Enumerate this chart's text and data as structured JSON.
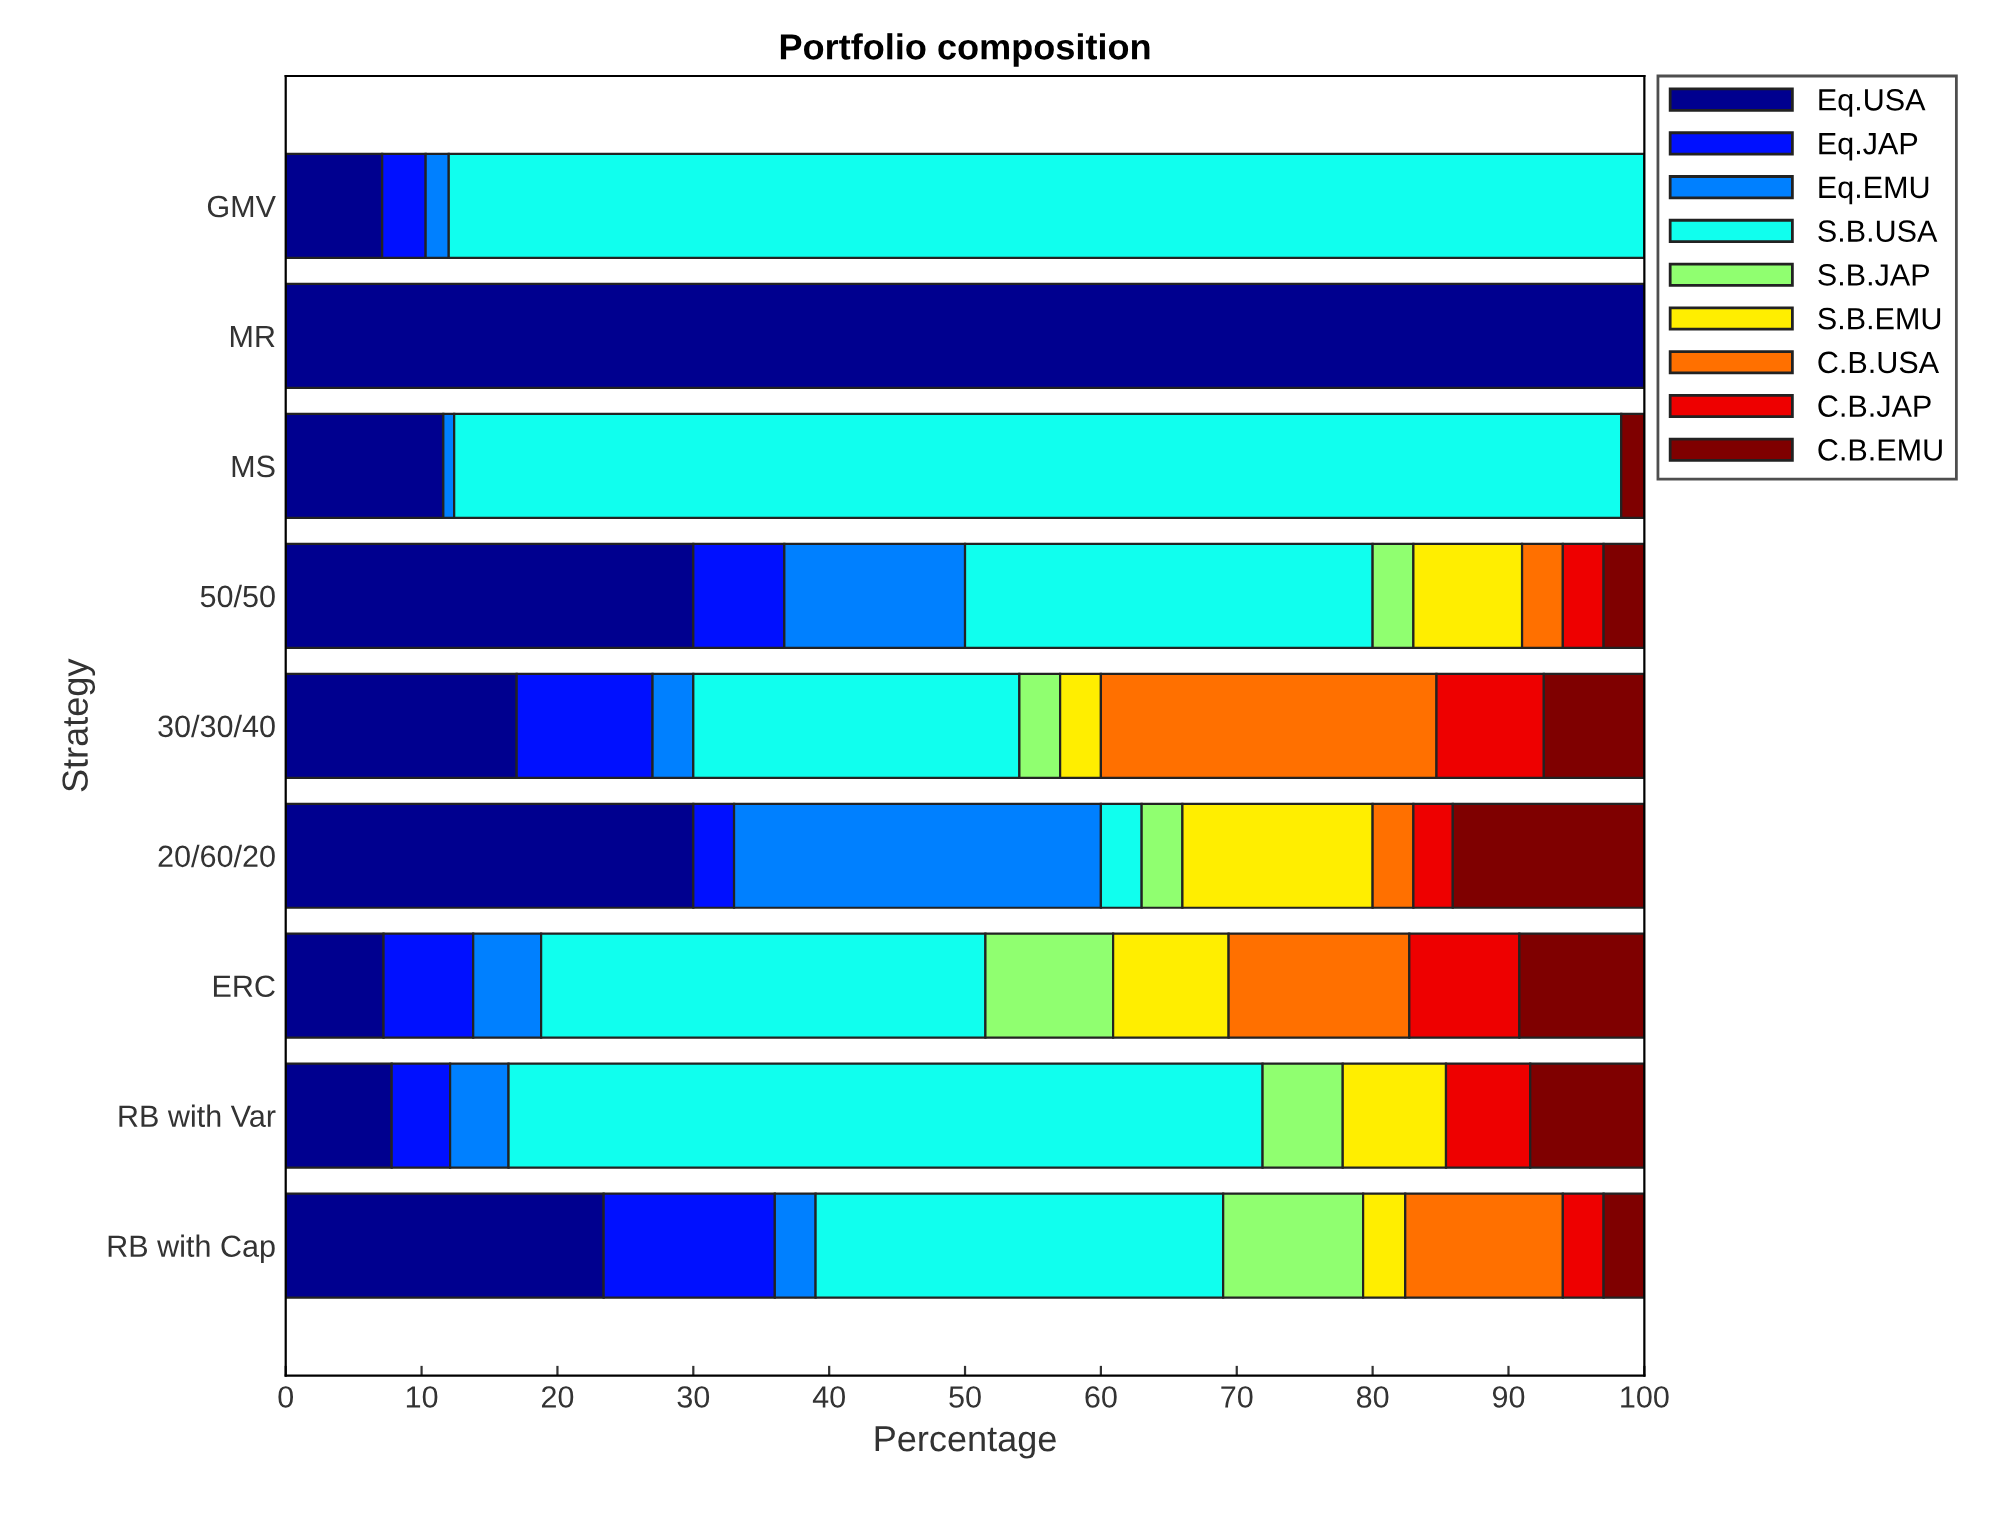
{
  "chart_data": {
    "type": "bar",
    "orientation": "horizontal",
    "stacked": true,
    "title": "Portfolio composition",
    "xlabel": "Percentage",
    "ylabel": "Strategy",
    "categories": [
      "GMV",
      "MR",
      "MS",
      "50/50",
      "30/30/40",
      "20/60/20",
      "ERC",
      "RB with Var",
      "RB with Cap"
    ],
    "xlim": [
      0,
      100
    ],
    "xticks": [
      0,
      10,
      20,
      30,
      40,
      50,
      60,
      70,
      80,
      90,
      100
    ],
    "grid": false,
    "legend": "top right",
    "series": [
      {
        "name": "Eq.USA",
        "color": "#00008f",
        "values": [
          7.1,
          100,
          11.6,
          30,
          17,
          30,
          7.2,
          7.8,
          23.4
        ]
      },
      {
        "name": "Eq.JAP",
        "color": "#0010ff",
        "values": [
          3.2,
          0,
          0,
          6.7,
          10,
          3,
          6.6,
          4.3,
          12.6
        ]
      },
      {
        "name": "Eq.EMU",
        "color": "#0080ff",
        "values": [
          1.7,
          0,
          0.8,
          13.3,
          3,
          27,
          5.0,
          4.3,
          3.0
        ]
      },
      {
        "name": "S.B.USA",
        "color": "#10ffee",
        "values": [
          88.0,
          0,
          85.9,
          30,
          24,
          3,
          32.7,
          55.5,
          30.0
        ]
      },
      {
        "name": "S.B.JAP",
        "color": "#90ff70",
        "values": [
          0,
          0,
          0,
          3,
          3,
          3,
          9.4,
          5.9,
          10.3
        ]
      },
      {
        "name": "S.B.EMU",
        "color": "#ffee00",
        "values": [
          0,
          0,
          0,
          8,
          3,
          14,
          8.5,
          7.6,
          3.1
        ]
      },
      {
        "name": "C.B.USA",
        "color": "#ff7000",
        "values": [
          0,
          0,
          0,
          3,
          24.7,
          3,
          13.3,
          0,
          11.6
        ]
      },
      {
        "name": "C.B.JAP",
        "color": "#ee0000",
        "values": [
          0,
          0,
          0,
          3,
          7.9,
          2.9,
          8.1,
          6.2,
          3.0
        ]
      },
      {
        "name": "C.B.EMU",
        "color": "#7f0000",
        "values": [
          0,
          0,
          1.7,
          3,
          7.4,
          14.1,
          9.2,
          8.4,
          3.0
        ]
      }
    ]
  }
}
